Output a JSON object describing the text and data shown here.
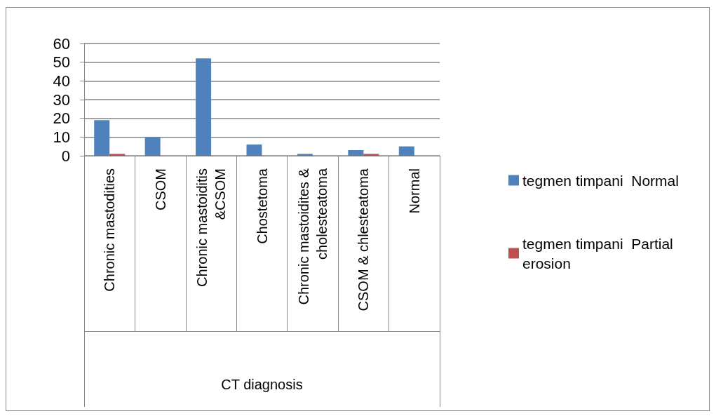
{
  "chart_data": {
    "type": "bar",
    "categories": [
      "Chronic mastodities",
      "CSOM",
      "Chronic mastoiditis &CSOM",
      "Chostetoma",
      "Chronic mastoidites & cholesteatoma",
      "CSOM & chlesteatoma",
      "Normal"
    ],
    "series": [
      {
        "name": "tegmen timpani  Normal",
        "color": "#4f81bd",
        "values": [
          19,
          10,
          52,
          6,
          1,
          3,
          5
        ]
      },
      {
        "name": "tegmen timpani  Partial erosion",
        "color": "#c0504d",
        "values": [
          1,
          0,
          0,
          0,
          0,
          1,
          0
        ]
      }
    ],
    "annotations": [
      "CT diagnosis"
    ],
    "ylim": [
      0,
      60
    ],
    "yticks": [
      0,
      10,
      20,
      30,
      40,
      50,
      60
    ],
    "grid": "y",
    "legend": "right"
  }
}
